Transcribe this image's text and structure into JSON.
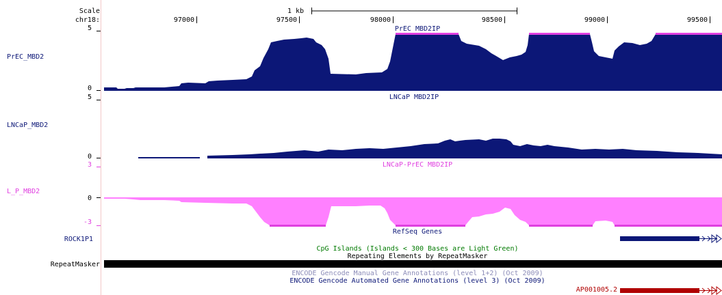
{
  "header": {
    "scale_label": "Scale",
    "chrom_label": "chr18:",
    "scale_bar_text": "1 kb",
    "positions": [
      "97000",
      "97500",
      "98000",
      "98500",
      "99000",
      "99500"
    ]
  },
  "tracks": {
    "prec": {
      "side_label": "PrEC_MBD2",
      "title": "PrEC MBD2IP",
      "ymax": "5",
      "ymin": "0",
      "color": "#0c1777",
      "overflow_color": "#e040e0"
    },
    "lncap": {
      "side_label": "LNCaP_MBD2",
      "title": "LNCaP MBD2IP",
      "ymax": "5",
      "ymin": "0",
      "color": "#0c1777"
    },
    "diff": {
      "side_label": "L_P_MBD2",
      "title": "LNCaP-PrEC MBD2IP",
      "ymax": "3",
      "ymid": "0",
      "ymin": "-3",
      "color": "#ff80ff",
      "label_color": "#e040e0"
    },
    "refseq": {
      "title": "RefSeq Genes",
      "gene": "ROCK1P1",
      "color": "#0c1777"
    },
    "cpg": {
      "title": "CpG Islands (Islands < 300 Bases are Light Green)",
      "color": "#007a00"
    },
    "repeat": {
      "title": "Repeating Elements by RepeatMasker",
      "side_label": "RepeatMasker"
    },
    "gencode_manual": {
      "title": "ENCODE Gencode Manual Gene Annotations (level 1+2) (Oct 2009)",
      "color": "#8c8cb8"
    },
    "gencode_auto": {
      "title": "ENCODE Gencode Automated Gene Annotations (level 3) (Oct 2009)",
      "color": "#0c1777",
      "gene": "AP001005.2",
      "gene_color": "#b00000"
    }
  }
}
